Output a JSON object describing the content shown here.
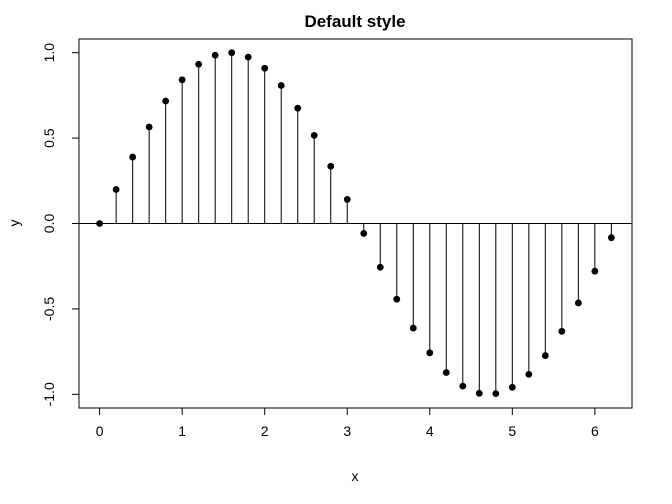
{
  "chart_data": {
    "type": "stem",
    "title": "Default style",
    "xlabel": "x",
    "ylabel": "y",
    "xlim": [
      -0.25,
      6.45
    ],
    "ylim": [
      -1.08,
      1.08
    ],
    "xticks": [
      0,
      1,
      2,
      3,
      4,
      5,
      6
    ],
    "xtick_labels": [
      "0",
      "1",
      "2",
      "3",
      "4",
      "5",
      "6"
    ],
    "yticks": [
      -1.0,
      -0.5,
      0.0,
      0.5,
      1.0
    ],
    "ytick_labels": [
      "-1.0",
      "-0.5",
      "0.0",
      "0.5",
      "1.0"
    ],
    "baseline": 0,
    "grid": false,
    "legend": "none",
    "points": [
      {
        "x": 0.0,
        "y": 0.0
      },
      {
        "x": 0.2,
        "y": 0.199
      },
      {
        "x": 0.4,
        "y": 0.389
      },
      {
        "x": 0.6,
        "y": 0.565
      },
      {
        "x": 0.8,
        "y": 0.717
      },
      {
        "x": 1.0,
        "y": 0.841
      },
      {
        "x": 1.2,
        "y": 0.932
      },
      {
        "x": 1.4,
        "y": 0.985
      },
      {
        "x": 1.6,
        "y": 1.0
      },
      {
        "x": 1.8,
        "y": 0.974
      },
      {
        "x": 2.0,
        "y": 0.909
      },
      {
        "x": 2.2,
        "y": 0.808
      },
      {
        "x": 2.4,
        "y": 0.675
      },
      {
        "x": 2.6,
        "y": 0.516
      },
      {
        "x": 2.8,
        "y": 0.335
      },
      {
        "x": 3.0,
        "y": 0.141
      },
      {
        "x": 3.2,
        "y": -0.058
      },
      {
        "x": 3.4,
        "y": -0.256
      },
      {
        "x": 3.6,
        "y": -0.443
      },
      {
        "x": 3.8,
        "y": -0.612
      },
      {
        "x": 4.0,
        "y": -0.757
      },
      {
        "x": 4.2,
        "y": -0.872
      },
      {
        "x": 4.4,
        "y": -0.952
      },
      {
        "x": 4.6,
        "y": -0.994
      },
      {
        "x": 4.8,
        "y": -0.996
      },
      {
        "x": 5.0,
        "y": -0.959
      },
      {
        "x": 5.2,
        "y": -0.883
      },
      {
        "x": 5.4,
        "y": -0.773
      },
      {
        "x": 5.6,
        "y": -0.631
      },
      {
        "x": 5.8,
        "y": -0.465
      },
      {
        "x": 6.0,
        "y": -0.279
      },
      {
        "x": 6.2,
        "y": -0.083
      }
    ]
  }
}
